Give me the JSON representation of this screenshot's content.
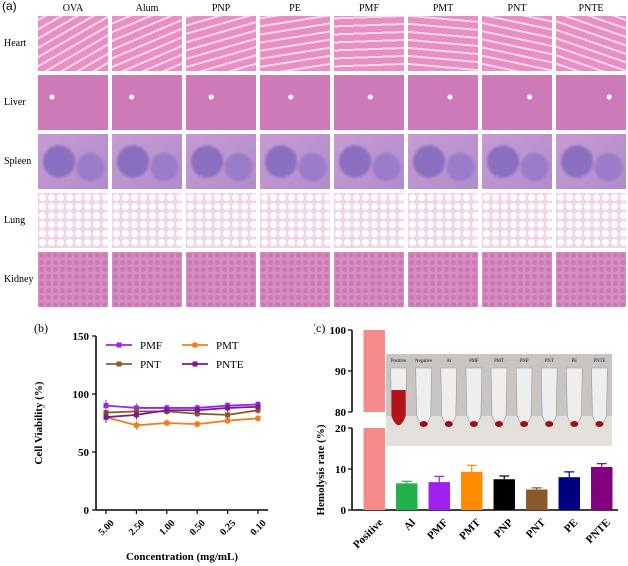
{
  "panel_a": {
    "label": "(a)",
    "columns": [
      "OVA",
      "Alum",
      "PNP",
      "PE",
      "PMF",
      "PMT",
      "PNT",
      "PNTE"
    ],
    "rows": [
      "Heart",
      "Liver",
      "Spleen",
      "Lung",
      "Kidney"
    ],
    "tissue_colors": {
      "Heart": "#e98fc4",
      "Liver": "#cf7ab8",
      "Spleen": "#a886c8",
      "Lung": "#f1d3ea",
      "Kidney": "#d98cc2"
    }
  },
  "panel_b": {
    "label": "(b)",
    "chart_data": {
      "type": "line",
      "categories": [
        "5.00",
        "2.50",
        "1.00",
        "0.50",
        "0.25",
        "0.10"
      ],
      "series": [
        {
          "name": "PMF",
          "color": "#a020f0",
          "values": [
            90,
            88,
            88,
            88,
            90,
            91
          ]
        },
        {
          "name": "PMT",
          "color": "#f47b20",
          "values": [
            80,
            73,
            75,
            74,
            77,
            79
          ]
        },
        {
          "name": "PNT",
          "color": "#8b5a2b",
          "values": [
            84,
            85,
            85,
            83,
            82,
            86
          ]
        },
        {
          "name": "PNTE",
          "color": "#7a1a8c",
          "values": [
            80,
            82,
            86,
            86,
            88,
            89
          ]
        }
      ],
      "errors": [
        5,
        4,
        3,
        3,
        3,
        3
      ],
      "ylabel": "Cell Viability (%)",
      "xlabel": "Concentration (mg/mL)",
      "ylim": [
        0,
        150
      ],
      "yticks": [
        "0",
        "50",
        "100",
        "150"
      ]
    }
  },
  "panel_c": {
    "label": "(c)",
    "chart_data": {
      "type": "bar",
      "categories": [
        "Positive",
        "Al",
        "PMF",
        "PMT",
        "PNP",
        "PNT",
        "PE",
        "PNTE"
      ],
      "values": [
        100,
        6.5,
        6.8,
        9.3,
        7.5,
        5.0,
        8.0,
        10.5
      ],
      "errors": [
        0,
        0.5,
        1.4,
        1.6,
        0.8,
        0.4,
        1.3,
        0.8
      ],
      "colors": [
        "#f48a8a",
        "#22b14c",
        "#a020f0",
        "#ff8c00",
        "#000000",
        "#8b5a2b",
        "#000080",
        "#800080"
      ],
      "ylabel": "Hemolysis rate (%)",
      "upper_yticks": [
        "80",
        "90",
        "100"
      ],
      "lower_yticks": [
        "0",
        "10",
        "20"
      ]
    },
    "inset_labels": [
      "Positive",
      "Negative",
      "Al",
      "PMF",
      "PMT",
      "PNP",
      "PNT",
      "PE",
      "PNTE"
    ]
  }
}
